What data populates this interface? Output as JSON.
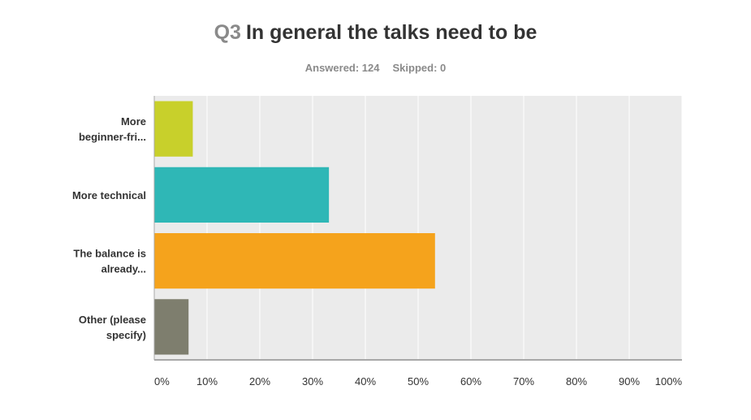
{
  "question": {
    "number": "Q3",
    "title": "In general the talks need to be",
    "answered_label": "Answered: 124",
    "skipped_label": "Skipped: 0"
  },
  "colors": {
    "plot_background": "#ebebeb",
    "gridline": "#ffffff",
    "axis": "#a8a8a8"
  },
  "chart_data": {
    "type": "bar",
    "orientation": "horizontal",
    "categories": [
      [
        "More",
        "beginner-fri..."
      ],
      [
        "More technical"
      ],
      [
        "The balance is",
        "already..."
      ],
      [
        "Other (please",
        "specify)"
      ]
    ],
    "values": [
      7.3,
      33.1,
      53.2,
      6.5
    ],
    "bar_colors": [
      "#c8d02b",
      "#2fb7b6",
      "#f5a31c",
      "#7e7e6e"
    ],
    "xlim": [
      0,
      100
    ],
    "xticks": [
      0,
      10,
      20,
      30,
      40,
      50,
      60,
      70,
      80,
      90,
      100
    ],
    "xtick_labels": [
      "0%",
      "10%",
      "20%",
      "30%",
      "40%",
      "50%",
      "60%",
      "70%",
      "80%",
      "90%",
      "100%"
    ],
    "grid": true,
    "xlabel": "",
    "ylabel": ""
  }
}
